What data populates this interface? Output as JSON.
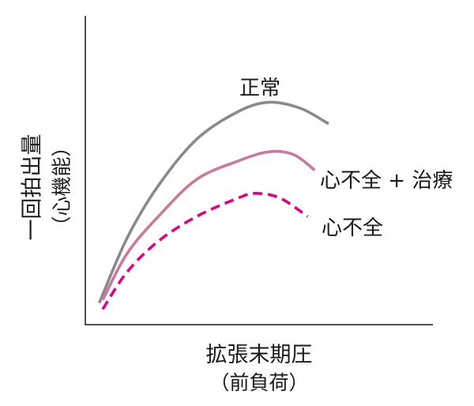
{
  "chart_data": {
    "type": "line",
    "xlabel": {
      "main": "拡張末期圧",
      "sub": "（前負荷）"
    },
    "ylabel": {
      "main": "一回拍出量",
      "sub": "（心機能）"
    },
    "xlim": [
      0,
      100
    ],
    "ylim": [
      0,
      100
    ],
    "grid": false,
    "legend": false,
    "series": [
      {
        "name": "正常",
        "color": "#8a8a8a",
        "dashed": false,
        "x": [
          4,
          12,
          21,
          32,
          44,
          53,
          62,
          70
        ],
        "y": [
          7,
          28,
          45,
          60,
          69,
          72,
          70,
          65
        ]
      },
      {
        "name": "心不全 + 治療",
        "color": "#c9789f",
        "dashed": false,
        "x": [
          5,
          12,
          21,
          32,
          44,
          53,
          60,
          66
        ],
        "y": [
          8,
          23,
          35,
          47,
          53,
          56,
          55,
          50
        ]
      },
      {
        "name": "心不全",
        "color": "#e4007f",
        "dashed": true,
        "x": [
          5,
          12,
          21,
          32,
          44,
          49,
          56,
          64
        ],
        "y": [
          5,
          17,
          27,
          35,
          41,
          42.5,
          41,
          35
        ]
      }
    ]
  }
}
